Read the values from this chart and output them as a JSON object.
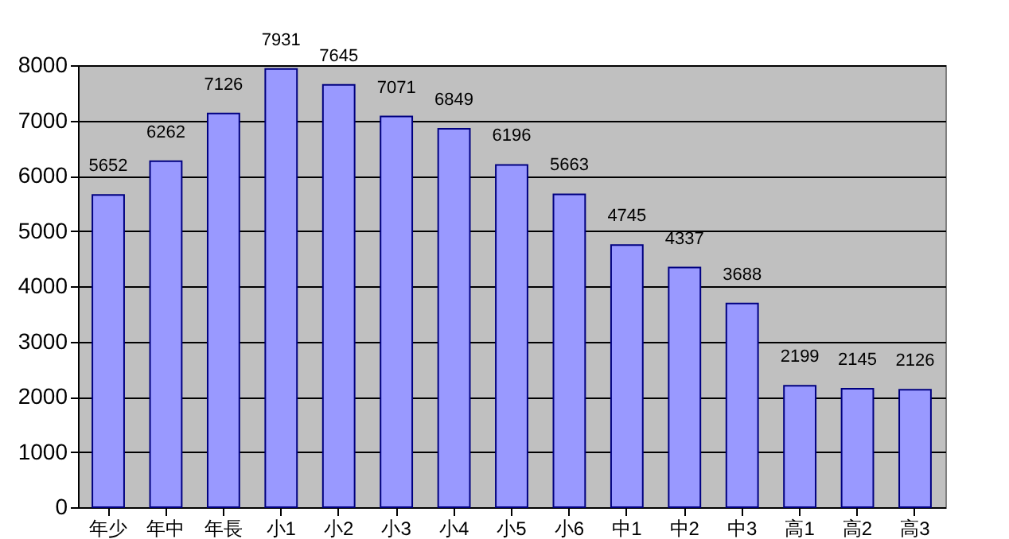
{
  "chart_data": {
    "type": "bar",
    "categories": [
      "年少",
      "年中",
      "年長",
      "小1",
      "小2",
      "小3",
      "小4",
      "小5",
      "小6",
      "中1",
      "中2",
      "中3",
      "高1",
      "高2",
      "高3"
    ],
    "values": [
      5652,
      6262,
      7126,
      7931,
      7645,
      7071,
      6849,
      6196,
      5663,
      4745,
      4337,
      3688,
      2199,
      2145,
      2126
    ],
    "color": "#9999ff",
    "ylim": [
      0,
      8000
    ],
    "yticks": [
      0,
      1000,
      2000,
      3000,
      4000,
      5000,
      6000,
      7000,
      8000
    ],
    "grid": "y",
    "data_labels": true
  }
}
